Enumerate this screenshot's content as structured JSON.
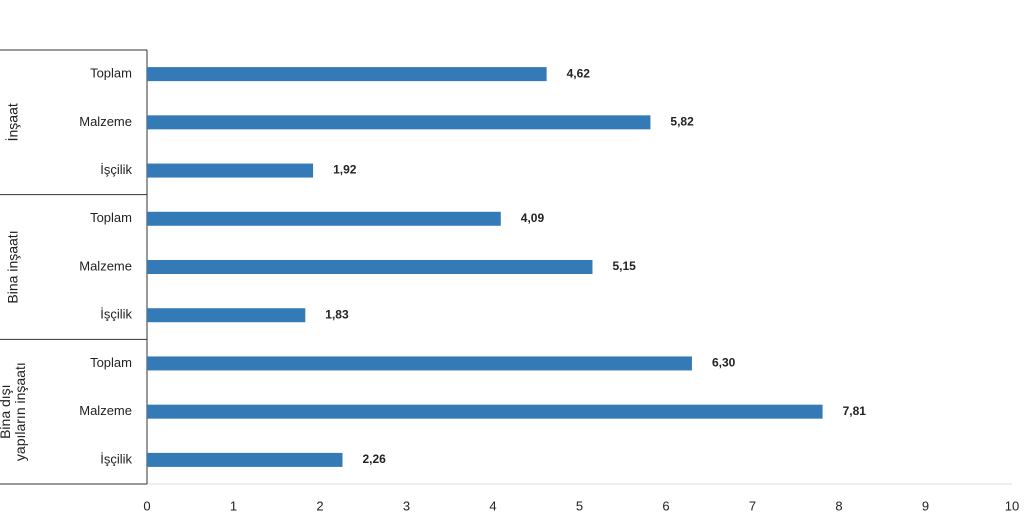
{
  "chart_data": {
    "type": "bar",
    "orientation": "horizontal",
    "group_labels": [
      [
        "İnşaat"
      ],
      [
        "Bina inşaatı"
      ],
      [
        "Bina dışı",
        "yapıların inşaatı"
      ]
    ],
    "categories": [
      "Toplam",
      "Malzeme",
      "İşçilik",
      "Toplam",
      "Malzeme",
      "İşçilik",
      "Toplam",
      "Malzeme",
      "İşçilik"
    ],
    "values": [
      4.62,
      5.82,
      1.92,
      4.09,
      5.15,
      1.83,
      6.3,
      7.81,
      2.26
    ],
    "value_labels": [
      "4,62",
      "5,82",
      "1,92",
      "4,09",
      "5,15",
      "1,83",
      "6,30",
      "7,81",
      "2,26"
    ],
    "color": "#337ab7",
    "xlim": [
      0,
      10
    ],
    "xticks": [
      0,
      1,
      2,
      3,
      4,
      5,
      6,
      7,
      8,
      9,
      10
    ]
  }
}
